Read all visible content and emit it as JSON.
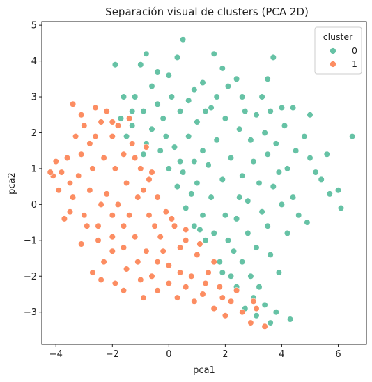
{
  "chart_data": {
    "type": "scatter",
    "title": "Separación visual de clusters (PCA 2D)",
    "xlabel": "pca1",
    "ylabel": "pca2",
    "xlim": [
      -4.5,
      7.0
    ],
    "ylim": [
      -3.9,
      5.1
    ],
    "x_ticks": [
      -4,
      -2,
      0,
      2,
      4,
      6
    ],
    "y_ticks": [
      -3,
      -2,
      -1,
      0,
      1,
      2,
      3,
      4,
      5
    ],
    "x_tick_labels": [
      "−4",
      "−2",
      "0",
      "2",
      "4",
      "6"
    ],
    "y_tick_labels": [
      "−3",
      "−2",
      "−1",
      "0",
      "1",
      "2",
      "3",
      "4",
      "5"
    ],
    "grid": false,
    "legend": {
      "title": "cluster",
      "placement": "top-right",
      "entries": [
        {
          "label": "0",
          "color": "#66c2a5"
        },
        {
          "label": "1",
          "color": "#fc8d62"
        }
      ]
    },
    "series": [
      {
        "name": "0",
        "color": "#66c2a5",
        "points": [
          [
            0.5,
            4.6
          ],
          [
            -0.8,
            4.2
          ],
          [
            1.6,
            4.2
          ],
          [
            0.3,
            4.1
          ],
          [
            -1.9,
            3.9
          ],
          [
            3.7,
            4.1
          ],
          [
            -1.0,
            3.9
          ],
          [
            -0.4,
            3.7
          ],
          [
            1.2,
            3.4
          ],
          [
            2.4,
            3.5
          ],
          [
            3.5,
            3.5
          ],
          [
            4.0,
            2.7
          ],
          [
            4.4,
            2.7
          ],
          [
            5.0,
            2.5
          ],
          [
            4.1,
            2.2
          ],
          [
            6.5,
            1.9
          ],
          [
            5.6,
            1.4
          ],
          [
            5.0,
            1.3
          ],
          [
            5.4,
            0.7
          ],
          [
            5.7,
            0.3
          ],
          [
            6.0,
            0.4
          ],
          [
            6.1,
            -0.1
          ],
          [
            4.4,
            0.2
          ],
          [
            4.9,
            -0.5
          ],
          [
            4.2,
            -0.8
          ],
          [
            3.6,
            -1.4
          ],
          [
            3.9,
            -1.9
          ],
          [
            3.2,
            -2.3
          ],
          [
            3.0,
            -2.6
          ],
          [
            2.7,
            -2.9
          ],
          [
            3.1,
            -3.1
          ],
          [
            3.4,
            -2.8
          ],
          [
            3.6,
            -3.3
          ],
          [
            3.8,
            -3.0
          ],
          [
            4.3,
            -3.2
          ],
          [
            2.2,
            -2.0
          ],
          [
            -1.2,
            3.0
          ],
          [
            -0.6,
            3.3
          ],
          [
            0.1,
            3.0
          ],
          [
            0.9,
            3.2
          ],
          [
            1.7,
            3.0
          ],
          [
            2.6,
            3.0
          ],
          [
            3.1,
            2.5
          ],
          [
            3.4,
            2.0
          ],
          [
            3.8,
            1.7
          ],
          [
            4.5,
            1.5
          ],
          [
            4.2,
            1.0
          ],
          [
            3.7,
            0.5
          ],
          [
            3.3,
            -0.2
          ],
          [
            2.8,
            -0.8
          ],
          [
            2.3,
            -1.3
          ],
          [
            1.8,
            -1.6
          ],
          [
            1.3,
            -1.0
          ],
          [
            0.9,
            -0.6
          ],
          [
            0.6,
            -0.1
          ],
          [
            0.3,
            0.5
          ],
          [
            0.0,
            1.0
          ],
          [
            -0.3,
            1.5
          ],
          [
            -0.6,
            2.1
          ],
          [
            -0.9,
            2.6
          ],
          [
            -1.3,
            2.2
          ],
          [
            -1.7,
            2.4
          ],
          [
            -1.5,
            1.9
          ],
          [
            -0.8,
            1.7
          ],
          [
            -0.2,
            2.4
          ],
          [
            0.4,
            2.6
          ],
          [
            1.0,
            2.3
          ],
          [
            1.5,
            2.7
          ],
          [
            2.0,
            2.4
          ],
          [
            2.5,
            2.1
          ],
          [
            2.9,
            1.8
          ],
          [
            3.0,
            1.2
          ],
          [
            2.6,
            0.8
          ],
          [
            2.2,
            1.3
          ],
          [
            1.7,
            1.8
          ],
          [
            1.2,
            1.5
          ],
          [
            0.7,
            1.9
          ],
          [
            0.2,
            1.6
          ],
          [
            0.5,
            0.9
          ],
          [
            1.0,
            0.6
          ],
          [
            1.5,
            0.2
          ],
          [
            2.0,
            -0.3
          ],
          [
            2.5,
            0.2
          ],
          [
            1.9,
            0.7
          ],
          [
            1.4,
            1.1
          ],
          [
            0.9,
            1.2
          ],
          [
            1.2,
            -0.3
          ],
          [
            1.6,
            -0.8
          ],
          [
            2.1,
            -1.0
          ],
          [
            2.6,
            -1.6
          ],
          [
            3.1,
            -1.2
          ],
          [
            3.5,
            -0.6
          ],
          [
            4.0,
            0.0
          ],
          [
            3.9,
            0.9
          ],
          [
            3.5,
            1.4
          ],
          [
            3.2,
            0.6
          ],
          [
            2.8,
            0.1
          ],
          [
            2.4,
            -0.4
          ],
          [
            0.7,
            2.9
          ],
          [
            1.3,
            2.6
          ],
          [
            -0.4,
            2.8
          ],
          [
            -0.1,
            1.9
          ],
          [
            0.4,
            1.2
          ],
          [
            0.8,
            0.3
          ],
          [
            1.1,
            -0.7
          ],
          [
            1.9,
            -1.9
          ],
          [
            2.4,
            -2.3
          ],
          [
            2.9,
            -2.0
          ],
          [
            4.6,
            -0.3
          ],
          [
            5.2,
            0.9
          ],
          [
            4.8,
            1.9
          ],
          [
            3.3,
            3.0
          ],
          [
            2.1,
            3.3
          ],
          [
            -1.6,
            3.0
          ],
          [
            0.0,
            3.6
          ],
          [
            1.9,
            3.8
          ],
          [
            -1.3,
            2.6
          ],
          [
            -0.9,
            1.4
          ],
          [
            2.7,
            2.6
          ],
          [
            3.6,
            2.6
          ]
        ]
      },
      {
        "name": "1",
        "color": "#fc8d62",
        "points": [
          [
            -4.1,
            0.8
          ],
          [
            -4.0,
            1.2
          ],
          [
            -3.9,
            0.4
          ],
          [
            -3.8,
            0.9
          ],
          [
            -3.6,
            1.3
          ],
          [
            -3.5,
            -0.2
          ],
          [
            -3.4,
            2.8
          ],
          [
            -3.1,
            2.5
          ],
          [
            -3.0,
            2.2
          ],
          [
            -2.8,
            1.7
          ],
          [
            -2.6,
            2.7
          ],
          [
            -2.4,
            2.3
          ],
          [
            -2.2,
            2.6
          ],
          [
            -2.0,
            1.9
          ],
          [
            -1.8,
            2.2
          ],
          [
            -1.6,
            1.4
          ],
          [
            -1.3,
            1.7
          ],
          [
            -1.0,
            1.0
          ],
          [
            -0.7,
            0.7
          ],
          [
            -0.4,
            0.2
          ],
          [
            -0.1,
            -0.2
          ],
          [
            0.2,
            -0.6
          ],
          [
            0.6,
            -1.0
          ],
          [
            1.0,
            -1.4
          ],
          [
            1.4,
            -1.9
          ],
          [
            1.8,
            -2.3
          ],
          [
            2.2,
            -2.7
          ],
          [
            2.6,
            -3.0
          ],
          [
            2.9,
            -3.3
          ],
          [
            3.4,
            -3.4
          ],
          [
            3.0,
            -2.7
          ],
          [
            2.4,
            -2.4
          ],
          [
            1.9,
            -2.6
          ],
          [
            1.2,
            -2.5
          ],
          [
            0.6,
            -2.3
          ],
          [
            0.0,
            -2.2
          ],
          [
            -0.6,
            -2.0
          ],
          [
            -1.1,
            -1.6
          ],
          [
            -1.6,
            -1.2
          ],
          [
            -2.0,
            -0.9
          ],
          [
            -2.5,
            -0.6
          ],
          [
            -3.0,
            -0.3
          ],
          [
            -3.4,
            0.2
          ],
          [
            -3.2,
            0.8
          ],
          [
            -2.8,
            0.4
          ],
          [
            -2.4,
            0.0
          ],
          [
            -2.0,
            -0.3
          ],
          [
            -1.6,
            -0.6
          ],
          [
            -1.2,
            -0.9
          ],
          [
            -0.8,
            -1.3
          ],
          [
            -0.4,
            -1.6
          ],
          [
            0.0,
            -1.7
          ],
          [
            0.4,
            -1.9
          ],
          [
            0.8,
            -2.0
          ],
          [
            1.3,
            -2.2
          ],
          [
            1.6,
            -1.6
          ],
          [
            1.1,
            -1.1
          ],
          [
            0.6,
            -0.7
          ],
          [
            0.1,
            -0.4
          ],
          [
            -0.3,
            -0.9
          ],
          [
            -0.7,
            -0.3
          ],
          [
            -1.1,
            0.2
          ],
          [
            -1.5,
            0.6
          ],
          [
            -1.9,
            1.0
          ],
          [
            -2.3,
            1.3
          ],
          [
            -2.7,
            1.0
          ],
          [
            -3.1,
            1.4
          ],
          [
            -3.5,
            0.6
          ],
          [
            -2.9,
            -0.6
          ],
          [
            -2.5,
            -1.0
          ],
          [
            -2.0,
            -1.3
          ],
          [
            -1.5,
            -1.8
          ],
          [
            -1.0,
            -2.1
          ],
          [
            -0.4,
            -2.4
          ],
          [
            0.3,
            -2.6
          ],
          [
            -0.9,
            -2.6
          ],
          [
            -2.7,
            -1.9
          ],
          [
            -1.9,
            -2.2
          ],
          [
            -3.1,
            -1.1
          ],
          [
            -2.2,
            0.3
          ],
          [
            -1.8,
            0.0
          ],
          [
            -1.4,
            -0.3
          ],
          [
            -0.9,
            0.4
          ],
          [
            -0.5,
            -0.6
          ],
          [
            -1.2,
            1.3
          ],
          [
            -0.6,
            0.9
          ],
          [
            -2.6,
            1.9
          ],
          [
            -2.0,
            2.3
          ],
          [
            -3.3,
            1.9
          ],
          [
            -3.7,
            -0.4
          ],
          [
            -4.2,
            0.9
          ],
          [
            -2.3,
            -1.6
          ],
          [
            1.6,
            -2.9
          ],
          [
            2.0,
            -3.1
          ],
          [
            3.1,
            -2.9
          ],
          [
            -1.4,
            2.4
          ],
          [
            0.9,
            -2.7
          ],
          [
            -0.2,
            -1.3
          ],
          [
            0.4,
            -1.2
          ],
          [
            -1.6,
            -2.4
          ],
          [
            -2.4,
            -2.1
          ],
          [
            -0.8,
            1.6
          ]
        ]
      }
    ]
  }
}
